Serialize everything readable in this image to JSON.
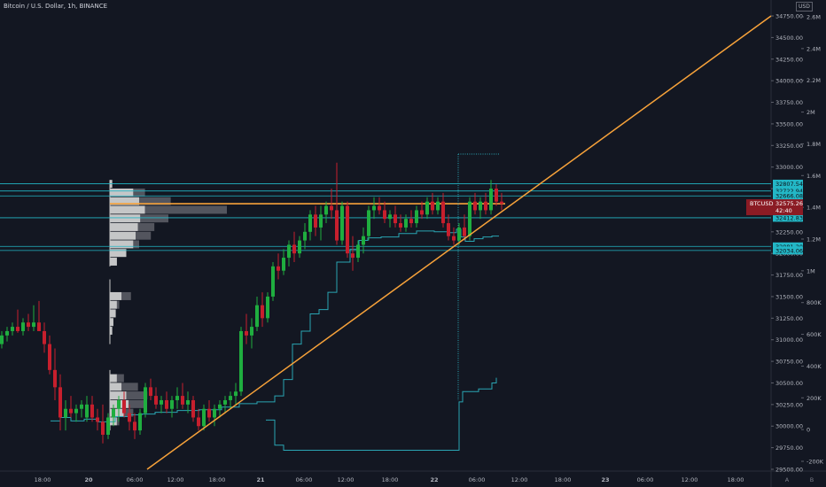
{
  "header": {
    "title": "Bitcoin / U.S. Dollar, 1h, BINANCE",
    "currency": "USD"
  },
  "colors": {
    "background": "#131722",
    "up": "#26a69a",
    "up_body": "#1fae3f",
    "down": "#c71f2d",
    "trendline": "#f7a23a",
    "hline": "#23b7c6",
    "step": "#2aa5b3",
    "profile": "#d9d9d9",
    "profile_dark": "#5f6068"
  },
  "chart_data": {
    "type": "candlestick",
    "title": "Bitcoin / U.S. Dollar, 1h, BINANCE",
    "y_label": "USD",
    "ylim": [
      29500,
      34900
    ],
    "y_ticks": [
      "34750.00",
      "34500.00",
      "34250.00",
      "34000.00",
      "33750.00",
      "33500.00",
      "33250.00",
      "33000.00",
      "32750.00",
      "32500.00",
      "32250.00",
      "32000.00",
      "31750.00",
      "31500.00",
      "31250.00",
      "31000.00",
      "30750.00",
      "30500.00",
      "30250.00",
      "30000.00",
      "29750.00",
      "29500.00"
    ],
    "y_tick_values": [
      34750,
      34500,
      34250,
      34000,
      33750,
      33500,
      33250,
      33000,
      32750,
      32500,
      32250,
      32000,
      31750,
      31500,
      31250,
      31000,
      30750,
      30500,
      30250,
      30000,
      29750,
      29500
    ],
    "volume_axis_ticks": [
      "2.6M",
      "2.4M",
      "2.2M",
      "2M",
      "1.8M",
      "1.6M",
      "1.4M",
      "1.2M",
      "1M",
      "800K",
      "600K",
      "400K",
      "200K",
      "0",
      "-200K"
    ],
    "volume_axis_values": [
      2600000,
      2400000,
      2200000,
      2000000,
      1800000,
      1600000,
      1400000,
      1200000,
      1000000,
      800000,
      600000,
      400000,
      200000,
      0,
      -200000
    ],
    "x_ticks": [
      "18:00",
      "20",
      "06:00",
      "12:00",
      "18:00",
      "21",
      "06:00",
      "12:00",
      "18:00",
      "22",
      "06:00",
      "12:00",
      "18:00",
      "23",
      "06:00",
      "12:00",
      "18:00"
    ],
    "price_tags": [
      {
        "label": "32807.54",
        "value": 32807.54
      },
      {
        "label": "32722.94",
        "value": 32722.94
      },
      {
        "label": "32666.08",
        "value": 32666.08
      },
      {
        "label": "32412.83",
        "value": 32412.83
      },
      {
        "label": "32081.20",
        "value": 32081.2
      },
      {
        "label": "32034.06",
        "value": 32034.06
      }
    ],
    "current_price": {
      "symbol": "BTCUSD",
      "value": "32575.26",
      "countdown": "42:40",
      "price": 32575.26
    },
    "horizontal_lines": [
      32807.54,
      32722.94,
      32666.08,
      32412.83,
      32081.2,
      32034.06
    ],
    "trendline": {
      "from": {
        "date": "20 08:00",
        "price": 29500
      },
      "to": {
        "date": "23 18:30",
        "price": 34750
      }
    },
    "volume_profile_rows": [
      {
        "price": 32800,
        "light": 0.02,
        "dark": 0.0
      },
      {
        "price": 32700,
        "light": 0.2,
        "dark": 0.3
      },
      {
        "price": 32600,
        "light": 0.25,
        "dark": 0.52
      },
      {
        "price": 32500,
        "light": 0.3,
        "dark": 1.0
      },
      {
        "price": 32400,
        "light": 0.26,
        "dark": 0.5
      },
      {
        "price": 32300,
        "light": 0.24,
        "dark": 0.38
      },
      {
        "price": 32200,
        "light": 0.22,
        "dark": 0.35
      },
      {
        "price": 32100,
        "light": 0.2,
        "dark": 0.25
      },
      {
        "price": 32000,
        "light": 0.14,
        "dark": 0.1
      },
      {
        "price": 31900,
        "light": 0.06,
        "dark": 0.02
      },
      {
        "price": 31500,
        "light": 0.1,
        "dark": 0.18
      },
      {
        "price": 31400,
        "light": 0.06,
        "dark": 0.08
      },
      {
        "price": 31300,
        "light": 0.05,
        "dark": 0.05
      },
      {
        "price": 31200,
        "light": 0.03,
        "dark": 0.02
      },
      {
        "price": 31100,
        "light": 0.02,
        "dark": 0.0
      },
      {
        "price": 30550,
        "light": 0.06,
        "dark": 0.12
      },
      {
        "price": 30450,
        "light": 0.1,
        "dark": 0.24
      },
      {
        "price": 30350,
        "light": 0.14,
        "dark": 0.32
      },
      {
        "price": 30250,
        "light": 0.16,
        "dark": 0.3
      },
      {
        "price": 30150,
        "light": 0.12,
        "dark": 0.2
      },
      {
        "price": 30050,
        "light": 0.06,
        "dark": 0.08
      }
    ],
    "step_series": {
      "name": "",
      "values": [
        [
          57,
          30060
        ],
        [
          68,
          30100
        ],
        [
          80,
          30060
        ],
        [
          95,
          30080
        ],
        [
          110,
          30050
        ],
        [
          130,
          30110
        ],
        [
          145,
          30130
        ],
        [
          160,
          30140
        ],
        [
          175,
          30160
        ],
        [
          200,
          30180
        ],
        [
          225,
          30190
        ],
        [
          250,
          30220
        ],
        [
          270,
          30260
        ],
        [
          290,
          30280
        ],
        [
          310,
          30350
        ],
        [
          320,
          30540
        ],
        [
          330,
          30950
        ],
        [
          340,
          31100
        ],
        [
          350,
          31300
        ],
        [
          360,
          31350
        ],
        [
          370,
          31550
        ],
        [
          380,
          31900
        ],
        [
          395,
          32050
        ],
        [
          405,
          32150
        ],
        [
          415,
          32180
        ],
        [
          430,
          32190
        ],
        [
          450,
          32230
        ],
        [
          470,
          32260
        ],
        [
          490,
          32250
        ],
        [
          505,
          32240
        ],
        [
          515,
          32280
        ],
        [
          520,
          32190
        ],
        [
          525,
          32140
        ],
        [
          535,
          32170
        ],
        [
          545,
          32190
        ],
        [
          555,
          32200
        ],
        [
          563,
          32200
        ]
      ]
    },
    "upper_step": {
      "from_x": 517,
      "to_x": 563,
      "price": 33150
    },
    "lower_step": {
      "values": [
        [
          300,
          30070
        ],
        [
          310,
          29780
        ],
        [
          320,
          29720
        ],
        [
          518,
          29720
        ],
        [
          518,
          30280
        ],
        [
          522,
          30400
        ],
        [
          540,
          30430
        ],
        [
          555,
          30500
        ],
        [
          560,
          30560
        ]
      ]
    },
    "candles": [
      {
        "x": 2,
        "o": 30950,
        "h": 31100,
        "l": 30900,
        "c": 31050
      },
      {
        "x": 8,
        "o": 31050,
        "h": 31150,
        "l": 30980,
        "c": 31100
      },
      {
        "x": 14,
        "o": 31100,
        "h": 31200,
        "l": 31050,
        "c": 31150
      },
      {
        "x": 20,
        "o": 31150,
        "h": 31350,
        "l": 31080,
        "c": 31100
      },
      {
        "x": 26,
        "o": 31100,
        "h": 31250,
        "l": 31050,
        "c": 31200
      },
      {
        "x": 32,
        "o": 31200,
        "h": 31300,
        "l": 31100,
        "c": 31150
      },
      {
        "x": 38,
        "o": 31150,
        "h": 31400,
        "l": 31100,
        "c": 31200
      },
      {
        "x": 44,
        "o": 31200,
        "h": 31450,
        "l": 31150,
        "c": 31100
      },
      {
        "x": 50,
        "o": 31100,
        "h": 31200,
        "l": 30850,
        "c": 30950
      },
      {
        "x": 56,
        "o": 30950,
        "h": 31050,
        "l": 30600,
        "c": 30650
      },
      {
        "x": 62,
        "o": 30650,
        "h": 30900,
        "l": 30300,
        "c": 30450
      },
      {
        "x": 68,
        "o": 30450,
        "h": 30600,
        "l": 29950,
        "c": 30100
      },
      {
        "x": 74,
        "o": 30100,
        "h": 30300,
        "l": 29950,
        "c": 30200
      },
      {
        "x": 80,
        "o": 30200,
        "h": 30350,
        "l": 30100,
        "c": 30150
      },
      {
        "x": 86,
        "o": 30150,
        "h": 30250,
        "l": 30050,
        "c": 30200
      },
      {
        "x": 92,
        "o": 30200,
        "h": 30300,
        "l": 30100,
        "c": 30250
      },
      {
        "x": 98,
        "o": 30100,
        "h": 30350,
        "l": 30050,
        "c": 30250
      },
      {
        "x": 104,
        "o": 30250,
        "h": 30350,
        "l": 30050,
        "c": 30100
      },
      {
        "x": 110,
        "o": 30100,
        "h": 30200,
        "l": 29950,
        "c": 30050
      },
      {
        "x": 116,
        "o": 30050,
        "h": 30250,
        "l": 29800,
        "c": 29900
      },
      {
        "x": 122,
        "o": 29900,
        "h": 30150,
        "l": 29850,
        "c": 30100
      },
      {
        "x": 128,
        "o": 30100,
        "h": 30250,
        "l": 30000,
        "c": 30200
      },
      {
        "x": 134,
        "o": 30200,
        "h": 30350,
        "l": 30050,
        "c": 30300
      },
      {
        "x": 140,
        "o": 30300,
        "h": 30400,
        "l": 30100,
        "c": 30150
      },
      {
        "x": 146,
        "o": 30150,
        "h": 30250,
        "l": 29950,
        "c": 30050
      },
      {
        "x": 152,
        "o": 30050,
        "h": 30150,
        "l": 29850,
        "c": 29950
      },
      {
        "x": 158,
        "o": 29950,
        "h": 30200,
        "l": 29900,
        "c": 30150
      },
      {
        "x": 164,
        "o": 30150,
        "h": 30500,
        "l": 30100,
        "c": 30450
      },
      {
        "x": 170,
        "o": 30450,
        "h": 30550,
        "l": 30300,
        "c": 30350
      },
      {
        "x": 176,
        "o": 30350,
        "h": 30450,
        "l": 30200,
        "c": 30250
      },
      {
        "x": 182,
        "o": 30250,
        "h": 30350,
        "l": 30150,
        "c": 30300
      },
      {
        "x": 188,
        "o": 30300,
        "h": 30400,
        "l": 30150,
        "c": 30200
      },
      {
        "x": 194,
        "o": 30200,
        "h": 30350,
        "l": 30100,
        "c": 30300
      },
      {
        "x": 200,
        "o": 30300,
        "h": 30450,
        "l": 30200,
        "c": 30350
      },
      {
        "x": 206,
        "o": 30350,
        "h": 30500,
        "l": 30200,
        "c": 30250
      },
      {
        "x": 212,
        "o": 30250,
        "h": 30400,
        "l": 30150,
        "c": 30300
      },
      {
        "x": 218,
        "o": 30300,
        "h": 30350,
        "l": 30050,
        "c": 30100
      },
      {
        "x": 224,
        "o": 30100,
        "h": 30200,
        "l": 29950,
        "c": 30000
      },
      {
        "x": 230,
        "o": 30000,
        "h": 30250,
        "l": 29950,
        "c": 30200
      },
      {
        "x": 236,
        "o": 30200,
        "h": 30300,
        "l": 30050,
        "c": 30100
      },
      {
        "x": 242,
        "o": 30100,
        "h": 30250,
        "l": 30000,
        "c": 30200
      },
      {
        "x": 248,
        "o": 30200,
        "h": 30300,
        "l": 30100,
        "c": 30250
      },
      {
        "x": 254,
        "o": 30250,
        "h": 30350,
        "l": 30150,
        "c": 30300
      },
      {
        "x": 260,
        "o": 30300,
        "h": 30400,
        "l": 30200,
        "c": 30350
      },
      {
        "x": 266,
        "o": 30350,
        "h": 30500,
        "l": 30250,
        "c": 30400
      },
      {
        "x": 272,
        "o": 30400,
        "h": 31150,
        "l": 30350,
        "c": 31100
      },
      {
        "x": 278,
        "o": 31100,
        "h": 31300,
        "l": 30950,
        "c": 31050
      },
      {
        "x": 284,
        "o": 31050,
        "h": 31250,
        "l": 30900,
        "c": 31150
      },
      {
        "x": 290,
        "o": 31150,
        "h": 31500,
        "l": 31100,
        "c": 31400
      },
      {
        "x": 296,
        "o": 31400,
        "h": 31550,
        "l": 31150,
        "c": 31250
      },
      {
        "x": 302,
        "o": 31250,
        "h": 31550,
        "l": 31200,
        "c": 31500
      },
      {
        "x": 308,
        "o": 31500,
        "h": 31900,
        "l": 31450,
        "c": 31850
      },
      {
        "x": 314,
        "o": 31850,
        "h": 32000,
        "l": 31700,
        "c": 31800
      },
      {
        "x": 320,
        "o": 31800,
        "h": 32050,
        "l": 31750,
        "c": 31950
      },
      {
        "x": 326,
        "o": 31950,
        "h": 32150,
        "l": 31850,
        "c": 32100
      },
      {
        "x": 332,
        "o": 32100,
        "h": 32250,
        "l": 31900,
        "c": 32000
      },
      {
        "x": 338,
        "o": 32000,
        "h": 32200,
        "l": 31950,
        "c": 32150
      },
      {
        "x": 344,
        "o": 32150,
        "h": 32350,
        "l": 32050,
        "c": 32250
      },
      {
        "x": 350,
        "o": 32250,
        "h": 32500,
        "l": 32150,
        "c": 32450
      },
      {
        "x": 356,
        "o": 32450,
        "h": 32550,
        "l": 32200,
        "c": 32300
      },
      {
        "x": 362,
        "o": 32300,
        "h": 32550,
        "l": 32150,
        "c": 32450
      },
      {
        "x": 368,
        "o": 32450,
        "h": 32600,
        "l": 32350,
        "c": 32550
      },
      {
        "x": 374,
        "o": 32550,
        "h": 32750,
        "l": 32400,
        "c": 32500
      },
      {
        "x": 380,
        "o": 32500,
        "h": 33050,
        "l": 32100,
        "c": 32150
      },
      {
        "x": 386,
        "o": 32150,
        "h": 32600,
        "l": 32100,
        "c": 32550
      },
      {
        "x": 392,
        "o": 32550,
        "h": 32600,
        "l": 31950,
        "c": 32000
      },
      {
        "x": 398,
        "o": 32000,
        "h": 32200,
        "l": 31800,
        "c": 31950
      },
      {
        "x": 404,
        "o": 31950,
        "h": 32150,
        "l": 31900,
        "c": 32100
      },
      {
        "x": 410,
        "o": 32100,
        "h": 32300,
        "l": 32000,
        "c": 32200
      },
      {
        "x": 416,
        "o": 32200,
        "h": 32550,
        "l": 32150,
        "c": 32500
      },
      {
        "x": 422,
        "o": 32500,
        "h": 32650,
        "l": 32400,
        "c": 32550
      },
      {
        "x": 428,
        "o": 32550,
        "h": 32650,
        "l": 32450,
        "c": 32500
      },
      {
        "x": 434,
        "o": 32500,
        "h": 32600,
        "l": 32350,
        "c": 32400
      },
      {
        "x": 440,
        "o": 32400,
        "h": 32500,
        "l": 32300,
        "c": 32450
      },
      {
        "x": 446,
        "o": 32450,
        "h": 32550,
        "l": 32300,
        "c": 32350
      },
      {
        "x": 452,
        "o": 32350,
        "h": 32450,
        "l": 32250,
        "c": 32300
      },
      {
        "x": 458,
        "o": 32300,
        "h": 32450,
        "l": 32250,
        "c": 32400
      },
      {
        "x": 464,
        "o": 32400,
        "h": 32500,
        "l": 32300,
        "c": 32350
      },
      {
        "x": 470,
        "o": 32350,
        "h": 32550,
        "l": 32300,
        "c": 32500
      },
      {
        "x": 476,
        "o": 32500,
        "h": 32600,
        "l": 32400,
        "c": 32450
      },
      {
        "x": 482,
        "o": 32450,
        "h": 32650,
        "l": 32400,
        "c": 32600
      },
      {
        "x": 488,
        "o": 32600,
        "h": 32700,
        "l": 32450,
        "c": 32500
      },
      {
        "x": 494,
        "o": 32500,
        "h": 32650,
        "l": 32450,
        "c": 32600
      },
      {
        "x": 500,
        "o": 32600,
        "h": 32700,
        "l": 32300,
        "c": 32350
      },
      {
        "x": 506,
        "o": 32350,
        "h": 32450,
        "l": 32150,
        "c": 32200
      },
      {
        "x": 512,
        "o": 32200,
        "h": 32300,
        "l": 32100,
        "c": 32150
      },
      {
        "x": 518,
        "o": 32150,
        "h": 32350,
        "l": 32100,
        "c": 32300
      },
      {
        "x": 524,
        "o": 32300,
        "h": 32450,
        "l": 32150,
        "c": 32200
      },
      {
        "x": 530,
        "o": 32200,
        "h": 32650,
        "l": 32150,
        "c": 32600
      },
      {
        "x": 536,
        "o": 32600,
        "h": 32700,
        "l": 32450,
        "c": 32500
      },
      {
        "x": 542,
        "o": 32500,
        "h": 32650,
        "l": 32400,
        "c": 32600
      },
      {
        "x": 548,
        "o": 32600,
        "h": 32700,
        "l": 32450,
        "c": 32500
      },
      {
        "x": 554,
        "o": 32500,
        "h": 32850,
        "l": 32450,
        "c": 32750
      },
      {
        "x": 560,
        "o": 32750,
        "h": 32800,
        "l": 32550,
        "c": 32600
      },
      {
        "x": 566,
        "o": 32600,
        "h": 32700,
        "l": 32500,
        "c": 32575
      }
    ]
  },
  "corner": {
    "auto": "A",
    "log": "B"
  }
}
